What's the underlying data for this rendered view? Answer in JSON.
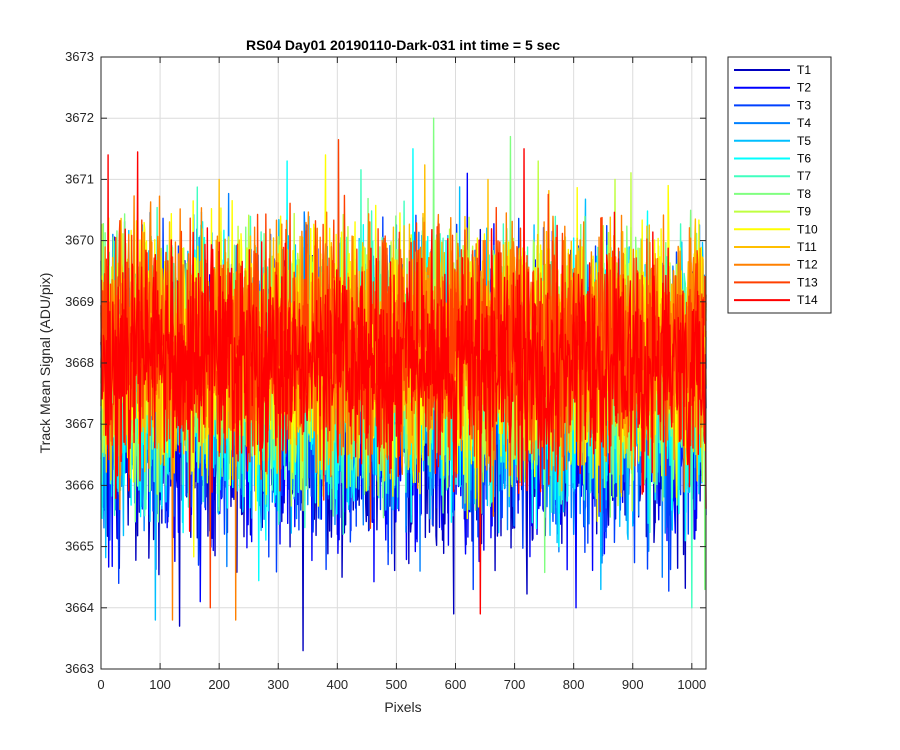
{
  "chart_data": {
    "type": "line",
    "title": "RS04 Day01 20190110-Dark-031 int time = 5 sec",
    "xlabel": "Pixels",
    "ylabel": "Track Mean Signal (ADU/pix)",
    "xlim": [
      0,
      1024
    ],
    "ylim": [
      3663,
      3673
    ],
    "xticks": [
      "0",
      "100",
      "200",
      "300",
      "400",
      "500",
      "600",
      "700",
      "800",
      "900",
      "1000"
    ],
    "yticks": [
      "3663",
      "3664",
      "3665",
      "3666",
      "3667",
      "3668",
      "3669",
      "3670",
      "3671",
      "3672",
      "3673"
    ],
    "grid": true,
    "legend_position": "outside-right",
    "series": [
      {
        "name": "T1",
        "color": "#0000bf",
        "center": 3667.2,
        "spread": 1.15,
        "extremes": [
          [
            342,
            3663.3
          ],
          [
            133,
            3663.7
          ],
          [
            597,
            3663.9
          ]
        ]
      },
      {
        "name": "T2",
        "color": "#0000ff",
        "center": 3667.3,
        "spread": 1.1,
        "extremes": [
          [
            168,
            3664.1
          ],
          [
            804,
            3664.0
          ]
        ]
      },
      {
        "name": "T3",
        "color": "#0040ff",
        "center": 3667.4,
        "spread": 1.1,
        "extremes": [
          [
            30,
            3664.4
          ],
          [
            630,
            3664.3
          ]
        ]
      },
      {
        "name": "T4",
        "color": "#0080ff",
        "center": 3667.6,
        "spread": 1.05,
        "extremes": [
          [
            540,
            3664.6
          ],
          [
            950,
            3664.5
          ]
        ]
      },
      {
        "name": "T5",
        "color": "#00bfff",
        "center": 3667.7,
        "spread": 1.05,
        "extremes": [
          [
            92,
            3663.8
          ],
          [
            846,
            3664.3
          ]
        ]
      },
      {
        "name": "T6",
        "color": "#00ffff",
        "center": 3667.8,
        "spread": 1.0,
        "extremes": [
          [
            315,
            3671.3
          ],
          [
            528,
            3671.5
          ],
          [
            775,
            3665.0
          ]
        ]
      },
      {
        "name": "T7",
        "color": "#40ffbf",
        "center": 3667.9,
        "spread": 1.0,
        "extremes": [
          [
            1000,
            3664.0
          ],
          [
            410,
            3665.2
          ]
        ]
      },
      {
        "name": "T8",
        "color": "#80ff80",
        "center": 3668.0,
        "spread": 1.0,
        "extremes": [
          [
            563,
            3672.0
          ],
          [
            693,
            3671.7
          ],
          [
            1022,
            3664.3
          ]
        ]
      },
      {
        "name": "T9",
        "color": "#bfff40",
        "center": 3668.1,
        "spread": 0.95,
        "extremes": [
          [
            740,
            3671.3
          ],
          [
            870,
            3671.0
          ]
        ]
      },
      {
        "name": "T10",
        "color": "#ffff00",
        "center": 3668.2,
        "spread": 0.95,
        "extremes": [
          [
            380,
            3671.4
          ],
          [
            960,
            3670.9
          ]
        ]
      },
      {
        "name": "T11",
        "color": "#ffbf00",
        "center": 3668.2,
        "spread": 0.9,
        "extremes": [
          [
            200,
            3671.0
          ],
          [
            655,
            3671.0
          ]
        ]
      },
      {
        "name": "T12",
        "color": "#ff8000",
        "center": 3668.3,
        "spread": 0.9,
        "extremes": [
          [
            121,
            3663.8
          ],
          [
            228,
            3663.8
          ]
        ]
      },
      {
        "name": "T13",
        "color": "#ff4000",
        "center": 3668.3,
        "spread": 0.9,
        "extremes": [
          [
            185,
            3664.0
          ],
          [
            456,
            3665.3
          ]
        ]
      },
      {
        "name": "T14",
        "color": "#ff0000",
        "center": 3668.0,
        "spread": 0.85,
        "extremes": [
          [
            12,
            3671.4
          ],
          [
            716,
            3671.5
          ],
          [
            642,
            3663.9
          ]
        ]
      }
    ]
  }
}
